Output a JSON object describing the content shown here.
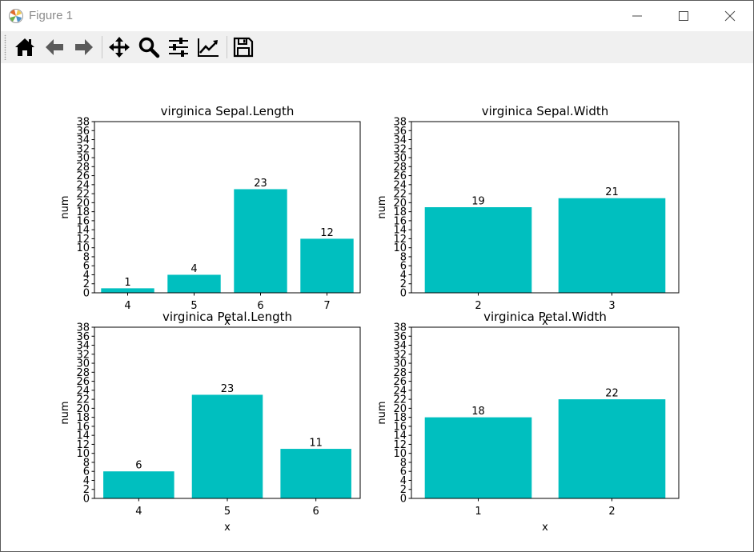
{
  "window": {
    "title": "Figure 1",
    "controls": [
      "minimize-icon",
      "maximize-icon",
      "close-icon"
    ]
  },
  "toolbar": {
    "buttons": [
      {
        "name": "home",
        "icon": "home-icon"
      },
      {
        "name": "back",
        "icon": "arrow-left-icon"
      },
      {
        "name": "forward",
        "icon": "arrow-right-icon"
      },
      {
        "name": "pan",
        "icon": "move-icon"
      },
      {
        "name": "zoom",
        "icon": "magnifier-icon"
      },
      {
        "name": "subplots",
        "icon": "sliders-icon"
      },
      {
        "name": "customize",
        "icon": "line-chart-icon"
      },
      {
        "name": "save",
        "icon": "floppy-disk-icon"
      }
    ]
  },
  "colors": {
    "bar": "#00bfbf",
    "axis": "#000000",
    "text": "#000000"
  },
  "chart_data": [
    {
      "type": "bar",
      "title": "virginica Sepal.Length",
      "xlabel": "x",
      "ylabel": "num",
      "categories": [
        "4",
        "5",
        "6",
        "7"
      ],
      "values": [
        1,
        4,
        23,
        12
      ],
      "ylim": [
        0,
        38
      ],
      "yticks": [
        "0",
        "2",
        "4",
        "6",
        "8",
        "10",
        "12",
        "14",
        "16",
        "18",
        "20",
        "22",
        "24",
        "26",
        "28",
        "30",
        "32",
        "34",
        "36",
        "38"
      ],
      "grid": false
    },
    {
      "type": "bar",
      "title": "virginica Sepal.Width",
      "xlabel": "x",
      "ylabel": "num",
      "categories": [
        "2",
        "3"
      ],
      "values": [
        19,
        21
      ],
      "ylim": [
        0,
        38
      ],
      "yticks": [
        "0",
        "2",
        "4",
        "6",
        "8",
        "10",
        "12",
        "14",
        "16",
        "18",
        "20",
        "22",
        "24",
        "26",
        "28",
        "30",
        "32",
        "34",
        "36",
        "38"
      ],
      "grid": false
    },
    {
      "type": "bar",
      "title": "virginica Petal.Length",
      "xlabel": "x",
      "ylabel": "num",
      "categories": [
        "4",
        "5",
        "6"
      ],
      "values": [
        6,
        23,
        11
      ],
      "ylim": [
        0,
        38
      ],
      "yticks": [
        "0",
        "2",
        "4",
        "6",
        "8",
        "10",
        "12",
        "14",
        "16",
        "18",
        "20",
        "22",
        "24",
        "26",
        "28",
        "30",
        "32",
        "34",
        "36",
        "38"
      ],
      "grid": false
    },
    {
      "type": "bar",
      "title": "virginica Petal.Width",
      "xlabel": "x",
      "ylabel": "num",
      "categories": [
        "1",
        "2"
      ],
      "values": [
        18,
        22
      ],
      "ylim": [
        0,
        38
      ],
      "yticks": [
        "0",
        "2",
        "4",
        "6",
        "8",
        "10",
        "12",
        "14",
        "16",
        "18",
        "20",
        "22",
        "24",
        "26",
        "28",
        "30",
        "32",
        "34",
        "36",
        "38"
      ],
      "grid": false
    }
  ]
}
